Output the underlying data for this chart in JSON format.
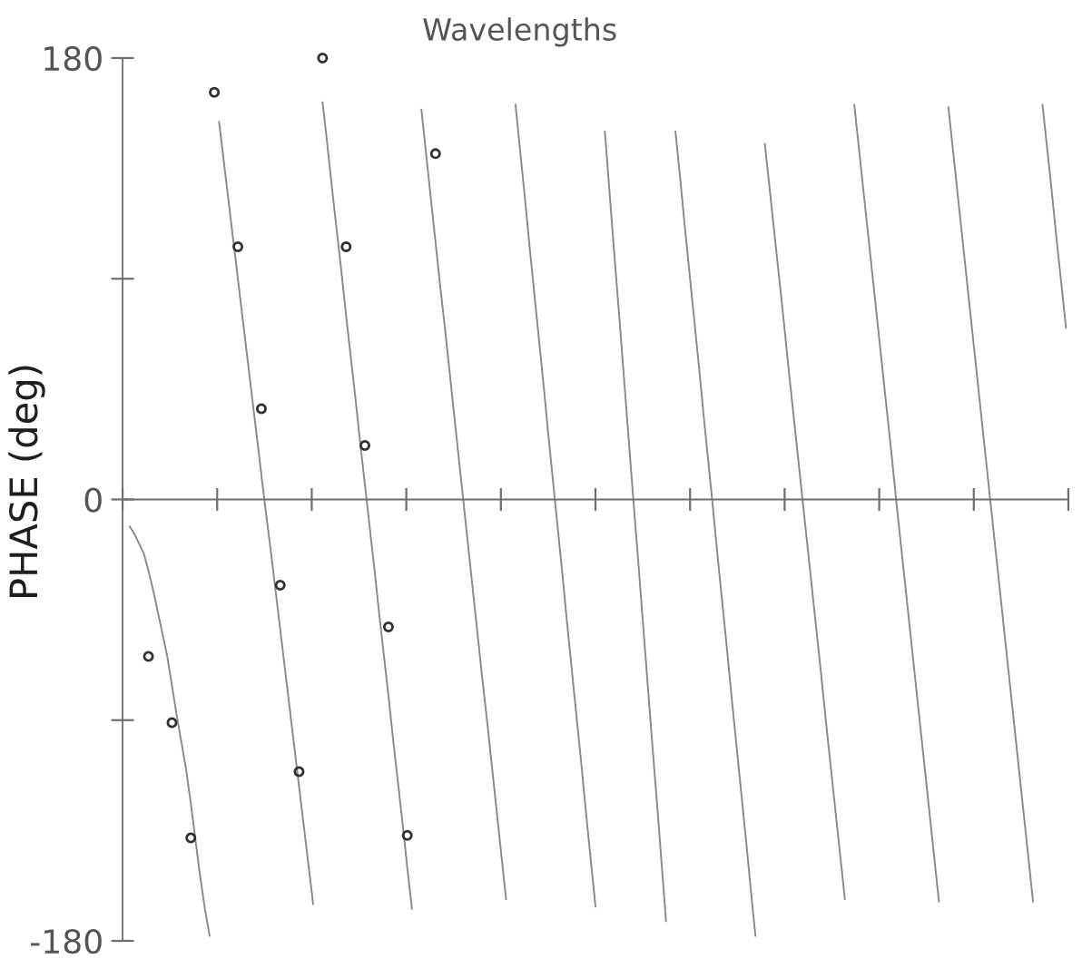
{
  "chart_data": {
    "type": "line",
    "title": "Wavelengths",
    "ylabel": "PHASE (deg)",
    "categories": [
      null,
      null,
      null,
      null,
      null,
      null,
      null,
      null,
      null,
      null,
      null,
      null,
      null,
      null,
      null,
      null,
      null,
      null,
      null,
      null,
      null,
      null,
      null,
      null,
      null,
      null,
      null,
      null,
      null,
      null,
      null,
      null,
      null,
      null,
      null,
      null,
      null,
      null,
      null,
      null,
      null,
      null,
      null,
      null,
      null,
      null,
      null,
      null,
      null,
      null,
      null,
      null,
      null,
      null,
      null,
      null,
      null,
      null,
      null,
      null,
      null,
      null,
      null,
      null,
      null,
      null,
      null,
      null,
      null,
      null,
      null,
      null,
      null,
      null,
      null,
      null,
      null,
      null,
      null,
      null,
      null,
      null,
      null,
      null,
      null,
      null,
      null,
      null,
      null,
      null,
      null,
      null,
      null,
      null,
      null,
      null,
      null,
      null,
      null,
      null,
      null,
      null,
      null,
      null,
      null,
      null,
      null,
      null,
      null,
      null,
      null,
      null,
      null,
      null,
      null,
      null,
      null,
      null,
      null,
      null,
      null,
      null,
      null,
      null,
      null,
      null,
      null,
      null,
      null,
      null,
      null,
      null,
      null,
      null,
      null,
      null,
      null,
      null,
      null,
      null,
      null,
      null,
      null,
      null,
      null,
      null,
      null,
      null,
      null,
      null,
      null,
      null,
      null,
      null,
      null,
      null,
      null,
      null,
      null,
      null,
      null,
      null,
      null,
      null,
      null,
      null,
      null,
      null,
      null,
      null,
      null,
      null,
      null,
      null,
      null,
      null,
      null,
      null,
      null,
      null,
      null,
      null,
      null,
      null,
      null,
      null,
      null,
      null,
      null,
      null,
      null,
      null,
      null,
      null,
      null,
      null,
      null,
      null,
      null,
      null,
      null
    ],
    "ylim": [
      -180,
      180
    ],
    "yticks": [
      180,
      0,
      -180
    ],
    "line_style": "solid",
    "series": [
      {
        "color": "#8a8a8a",
        "values": [
          null,
          -11,
          -14,
          -18,
          -22,
          -29,
          -37,
          -46,
          -55,
          -64,
          -76,
          -88,
          -99,
          -110,
          -124,
          -139,
          -154,
          -167,
          -178,
          null,
          154,
          138,
          122,
          106,
          90,
          74,
          58,
          42,
          26,
          10,
          -6,
          -21,
          -37,
          -53,
          -69,
          -85,
          -101,
          -117,
          -133,
          -149,
          -165,
          null,
          162,
          145,
          127,
          110,
          93,
          75,
          58,
          41,
          23,
          6,
          -11,
          -28,
          -46,
          -63,
          -80,
          -98,
          -115,
          -132,
          -150,
          -167,
          null,
          159,
          141,
          123,
          105,
          87,
          70,
          52,
          34,
          16,
          -2,
          -20,
          -38,
          -56,
          -74,
          -91,
          -109,
          -127,
          -145,
          -163,
          null,
          161,
          142,
          123,
          103,
          84,
          65,
          46,
          26,
          7,
          -12,
          -31,
          -51,
          -70,
          -89,
          -108,
          -128,
          -147,
          -166,
          null,
          150,
          125,
          100,
          76,
          51,
          26,
          1,
          -23,
          -48,
          -73,
          -98,
          -122,
          -147,
          -172,
          null,
          150,
          131,
          111,
          92,
          73,
          54,
          34,
          15,
          -4,
          -24,
          -43,
          -62,
          -82,
          -101,
          -120,
          -139,
          -159,
          -178,
          null,
          145,
          127,
          109,
          91,
          73,
          54,
          36,
          18,
          0,
          -18,
          -36,
          -54,
          -72,
          -91,
          -109,
          -127,
          -145,
          -163,
          null,
          161,
          143,
          125,
          107,
          89,
          71,
          53,
          35,
          17,
          -2,
          -20,
          -38,
          -56,
          -74,
          -92,
          -110,
          -128,
          -146,
          -164,
          null,
          160,
          142,
          124,
          106,
          88,
          70,
          52,
          34,
          16,
          -2,
          -20,
          -38,
          -56,
          -74,
          -92,
          -110,
          -128,
          -146,
          -164,
          null,
          161,
          143,
          125,
          106,
          88,
          70
        ]
      },
      {
        "type": "scatter",
        "marker": "circle",
        "color": "#303030",
        "values": [
          null,
          null,
          null,
          null,
          null,
          -64,
          null,
          null,
          null,
          null,
          -91,
          null,
          null,
          null,
          -138,
          null,
          null,
          null,
          null,
          166,
          null,
          null,
          null,
          null,
          103,
          null,
          null,
          null,
          null,
          37,
          null,
          null,
          null,
          -35,
          null,
          null,
          null,
          -111,
          null,
          null,
          null,
          null,
          180,
          null,
          null,
          null,
          null,
          103,
          null,
          null,
          null,
          22,
          null,
          null,
          null,
          null,
          -52,
          null,
          null,
          null,
          -137,
          null,
          null,
          null,
          null,
          null,
          141,
          null,
          null,
          null,
          null,
          null,
          null,
          null,
          null,
          null,
          null,
          null,
          null,
          null,
          null,
          null,
          null,
          null,
          null,
          null,
          null,
          null,
          null,
          null,
          null,
          null,
          null,
          null,
          null,
          null,
          null,
          null,
          null,
          null,
          null,
          null,
          null,
          null,
          null,
          null,
          null,
          null,
          null,
          null,
          null,
          null,
          null,
          null,
          null,
          null,
          null,
          null,
          null,
          null,
          null,
          null,
          null,
          null,
          null,
          null,
          null,
          null,
          null,
          null,
          null,
          null,
          null,
          null,
          null,
          null,
          null,
          null,
          null,
          null,
          null,
          null,
          null,
          null,
          null,
          null,
          null,
          null,
          null,
          null,
          null,
          null,
          null,
          null,
          null,
          null,
          null,
          null,
          null,
          null,
          null,
          null,
          null,
          null,
          null,
          null,
          null,
          null,
          null,
          null,
          null,
          null,
          null,
          null,
          null,
          null,
          null,
          null,
          null,
          null,
          null,
          null,
          null,
          null,
          null,
          null,
          null,
          null,
          null,
          null,
          null,
          null,
          null,
          null,
          null,
          null,
          null,
          null,
          null,
          null,
          null
        ]
      }
    ]
  }
}
